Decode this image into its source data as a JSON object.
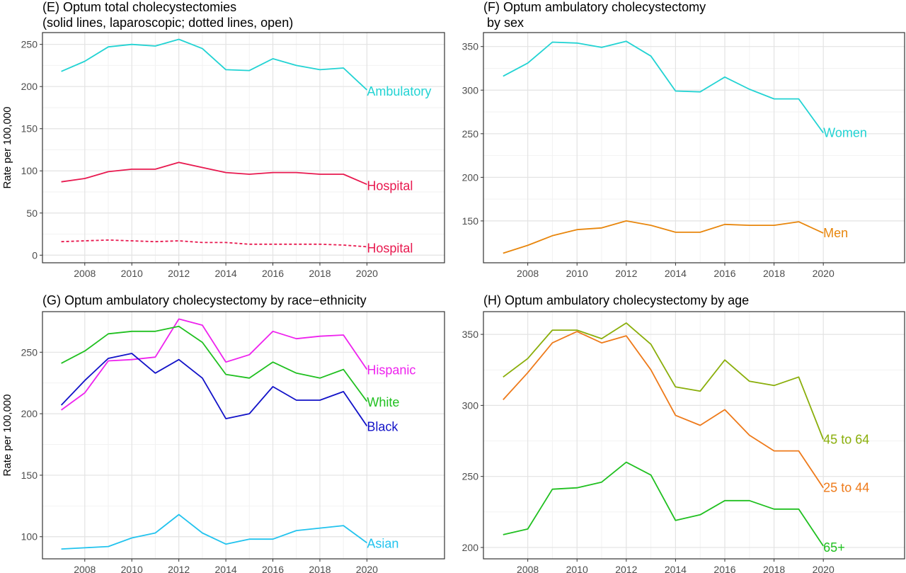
{
  "figure": {
    "ylabel_left": "Rate per 100,000"
  },
  "chart_data": [
    {
      "type": "line",
      "title": "(E) Optum total cholecystectomies",
      "subtitle": "(solid lines, laparoscopic; dotted lines, open)",
      "xlabel": "",
      "ylabel": "Rate per 100,000",
      "x": [
        2007,
        2008,
        2009,
        2010,
        2011,
        2012,
        2013,
        2014,
        2015,
        2016,
        2017,
        2018,
        2019,
        2020
      ],
      "xlim": [
        2006.2,
        2023.3
      ],
      "ylim": [
        -9,
        264
      ],
      "xticks": [
        2008,
        2010,
        2012,
        2014,
        2016,
        2018,
        2020
      ],
      "xtick_labels": [
        "2008",
        "2010",
        "2012",
        "2014",
        "2016",
        "2018",
        "2020"
      ],
      "yticks": [
        0,
        50,
        100,
        150,
        200,
        250
      ],
      "ytick_labels": [
        "0",
        "50",
        "100",
        "150",
        "200",
        "250"
      ],
      "grid": true,
      "series": [
        {
          "name": "Ambulatory",
          "color": "#22d3d3",
          "dashed": false,
          "values": [
            218,
            230,
            247,
            250,
            248,
            256,
            245,
            220,
            219,
            233,
            225,
            220,
            222,
            196
          ]
        },
        {
          "name": "Hospital",
          "color": "#e8194f",
          "dashed": false,
          "values": [
            87,
            91,
            99,
            102,
            102,
            110,
            104,
            98,
            96,
            98,
            98,
            96,
            96,
            84
          ]
        },
        {
          "name": "Hospital",
          "color": "#e8194f",
          "dashed": true,
          "values": [
            16,
            17,
            18,
            17,
            16,
            17,
            15,
            15,
            13,
            13,
            13,
            13,
            12,
            10
          ]
        }
      ]
    },
    {
      "type": "line",
      "title": "(F) Optum ambulatory cholecystectomy",
      "subtitle": " by sex",
      "xlabel": "",
      "ylabel": "",
      "x": [
        2007,
        2008,
        2009,
        2010,
        2011,
        2012,
        2013,
        2014,
        2015,
        2016,
        2017,
        2018,
        2019,
        2020
      ],
      "xlim": [
        2006.2,
        2023.3
      ],
      "ylim": [
        102,
        366
      ],
      "xticks": [
        2008,
        2010,
        2012,
        2014,
        2016,
        2018,
        2020
      ],
      "xtick_labels": [
        "2008",
        "2010",
        "2012",
        "2014",
        "2016",
        "2018",
        "2020"
      ],
      "yticks": [
        150,
        200,
        250,
        300,
        350
      ],
      "ytick_labels": [
        "150",
        "200",
        "250",
        "300",
        "350"
      ],
      "grid": true,
      "series": [
        {
          "name": "Women",
          "color": "#22d3d3",
          "dashed": false,
          "values": [
            316,
            331,
            355,
            354,
            349,
            356,
            339,
            299,
            298,
            315,
            301,
            290,
            290,
            251
          ]
        },
        {
          "name": "Men",
          "color": "#e8860c",
          "dashed": false,
          "values": [
            113,
            122,
            133,
            140,
            142,
            150,
            145,
            137,
            137,
            146,
            145,
            145,
            149,
            136
          ]
        }
      ]
    },
    {
      "type": "line",
      "title": "(G) Optum ambulatory cholecystectomy by race−ethnicity",
      "subtitle": "",
      "xlabel": "",
      "ylabel": "Rate per 100,000",
      "x": [
        2007,
        2008,
        2009,
        2010,
        2011,
        2012,
        2013,
        2014,
        2015,
        2016,
        2017,
        2018,
        2019,
        2020
      ],
      "xlim": [
        2006.2,
        2023.3
      ],
      "ylim": [
        82,
        283
      ],
      "xticks": [
        2008,
        2010,
        2012,
        2014,
        2016,
        2018,
        2020
      ],
      "xtick_labels": [
        "2008",
        "2010",
        "2012",
        "2014",
        "2016",
        "2018",
        "2020"
      ],
      "yticks": [
        100,
        150,
        200,
        250
      ],
      "ytick_labels": [
        "100",
        "150",
        "200",
        "250"
      ],
      "grid": true,
      "series": [
        {
          "name": "Hispanic",
          "color": "#ee22ee",
          "dashed": false,
          "values": [
            203,
            217,
            243,
            244,
            246,
            277,
            272,
            242,
            248,
            267,
            261,
            263,
            264,
            236
          ]
        },
        {
          "name": "White",
          "color": "#20c020",
          "dashed": false,
          "values": [
            241,
            251,
            265,
            267,
            267,
            271,
            258,
            232,
            229,
            242,
            233,
            229,
            236,
            210
          ]
        },
        {
          "name": "Black",
          "color": "#1212c8",
          "dashed": false,
          "values": [
            207,
            227,
            245,
            249,
            233,
            244,
            229,
            196,
            200,
            222,
            211,
            211,
            218,
            190
          ]
        },
        {
          "name": "Asian",
          "color": "#22c3ee",
          "dashed": false,
          "values": [
            90,
            91,
            92,
            99,
            103,
            118,
            103,
            94,
            98,
            98,
            105,
            107,
            109,
            95
          ]
        }
      ]
    },
    {
      "type": "line",
      "title": "(H) Optum ambulatory cholecystectomy by age",
      "subtitle": "",
      "xlabel": "",
      "ylabel": "",
      "x": [
        2007,
        2008,
        2009,
        2010,
        2011,
        2012,
        2013,
        2014,
        2015,
        2016,
        2017,
        2018,
        2019,
        2020
      ],
      "xlim": [
        2006.2,
        2023.3
      ],
      "ylim": [
        192,
        366
      ],
      "xticks": [
        2008,
        2010,
        2012,
        2014,
        2016,
        2018,
        2020
      ],
      "xtick_labels": [
        "2008",
        "2010",
        "2012",
        "2014",
        "2016",
        "2018",
        "2020"
      ],
      "yticks": [
        200,
        250,
        300,
        350
      ],
      "ytick_labels": [
        "200",
        "250",
        "300",
        "350"
      ],
      "grid": true,
      "series": [
        {
          "name": "45 to 64",
          "color": "#8aae0a",
          "dashed": false,
          "values": [
            320,
            333,
            353,
            353,
            347,
            358,
            343,
            313,
            310,
            332,
            317,
            314,
            320,
            276
          ]
        },
        {
          "name": "25 to 44",
          "color": "#ee7a1a",
          "dashed": false,
          "values": [
            304,
            323,
            344,
            352,
            344,
            349,
            325,
            293,
            286,
            297,
            279,
            268,
            268,
            242
          ]
        },
        {
          "name": "65+",
          "color": "#20c020",
          "dashed": false,
          "values": [
            209,
            213,
            241,
            242,
            246,
            260,
            251,
            219,
            223,
            233,
            233,
            227,
            227,
            201
          ]
        }
      ]
    }
  ]
}
